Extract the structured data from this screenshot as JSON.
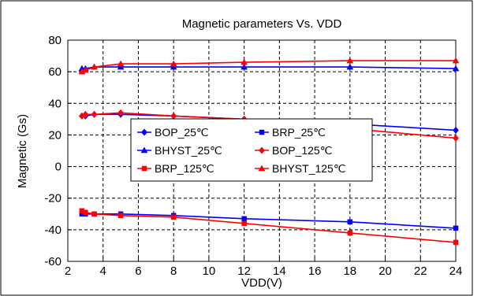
{
  "chart_data": {
    "type": "line",
    "title": "Magnetic parameters Vs. VDD",
    "xlabel": "VDD(V)",
    "ylabel": "Magnetic (Gs)",
    "xlim": [
      2,
      24
    ],
    "ylim": [
      -60,
      80
    ],
    "x_ticks": [
      "2",
      "4",
      "6",
      "8",
      "10",
      "12",
      "14",
      "16",
      "18",
      "20",
      "22",
      "24"
    ],
    "y_ticks": [
      "80",
      "60",
      "40",
      "20",
      "0",
      "-20",
      "-40",
      "-60"
    ],
    "x_tick_values": [
      2,
      4,
      6,
      8,
      10,
      12,
      14,
      16,
      18,
      20,
      22,
      24
    ],
    "y_tick_values": [
      80,
      60,
      40,
      20,
      0,
      -20,
      -40,
      -60
    ],
    "grid": "dashed",
    "legend_position": "center",
    "x": [
      2.8,
      3.0,
      3.5,
      5,
      8,
      12,
      18,
      24
    ],
    "series": [
      {
        "name": "BOP_25℃",
        "color": "#0000ff",
        "marker": "diamond",
        "values": [
          32,
          32,
          33,
          33,
          32,
          30,
          27,
          23
        ]
      },
      {
        "name": "BRP_25℃",
        "color": "#0000ff",
        "marker": "square",
        "values": [
          -30,
          -30,
          -30,
          -30,
          -31,
          -33,
          -35,
          -39
        ]
      },
      {
        "name": "BHYST_25℃",
        "color": "#0000ff",
        "marker": "triangle",
        "values": [
          62,
          62,
          63,
          63,
          63,
          63,
          63,
          62
        ]
      },
      {
        "name": "BOP_125℃",
        "color": "#ff0000",
        "marker": "diamond",
        "values": [
          32,
          33,
          33,
          34,
          32,
          30,
          24,
          18
        ]
      },
      {
        "name": "BRP_125℃",
        "color": "#ff0000",
        "marker": "square",
        "values": [
          -28,
          -29,
          -30,
          -31,
          -32,
          -36,
          -42,
          -48
        ]
      },
      {
        "name": "BHYST_125℃",
        "color": "#ff0000",
        "marker": "triangle",
        "values": [
          60,
          61,
          63,
          65,
          65,
          66,
          67,
          67
        ]
      }
    ]
  }
}
